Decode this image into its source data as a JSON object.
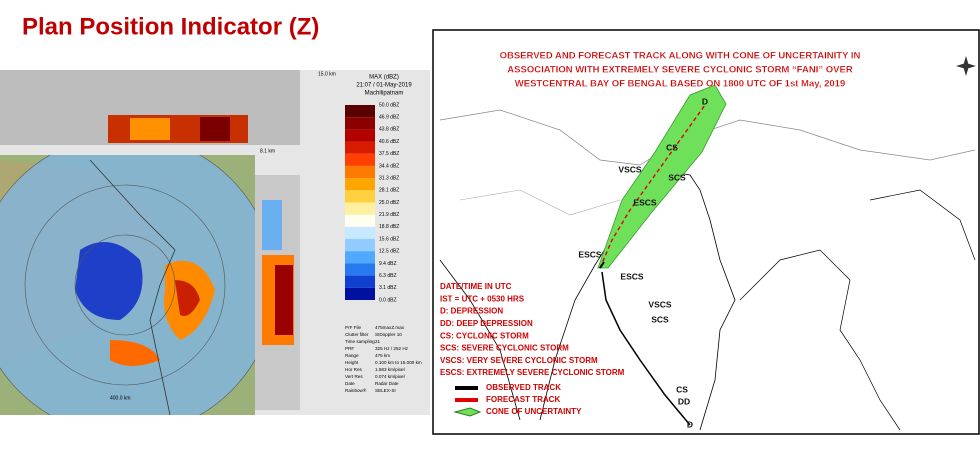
{
  "header": {
    "title": "Plan Position Indicator (Z)"
  },
  "radar": {
    "product": "MAX (dBZ)",
    "time": "21:07 / 01-May-2019",
    "station": "Machilipatnam",
    "top_height": "15.0 km",
    "side_height": "8.1 km",
    "range_label": "400.0 km",
    "scale": [
      "50.0 dBZ",
      "46.9 dBZ",
      "43.8 dBZ",
      "40.6 dBZ",
      "37.5 dBZ",
      "34.4 dBZ",
      "31.3 dBZ",
      "28.1 dBZ",
      "25.0 dBZ",
      "21.9 dBZ",
      "18.8 dBZ",
      "15.6 dBZ",
      "12.5 dBZ",
      "9.4 dBZ",
      "6.3 dBZ",
      "3.1 dBZ",
      "0.0 dBZ"
    ],
    "info": [
      [
        "PrF File",
        "475maxZ.max"
      ],
      [
        "Clutter filter",
        "SIDoppler 10"
      ],
      [
        "Time sampling",
        "21"
      ],
      [
        "PRF",
        "325 Hz / 252 Hz"
      ],
      [
        "Range",
        "475 km"
      ],
      [
        "Height",
        "0.100 km to 15.000 km"
      ],
      [
        "Hor Res",
        "1.583 km/pixel"
      ],
      [
        "Vert Res",
        "0.074 km/pixel"
      ],
      [
        "Date",
        "Radar Date"
      ],
      [
        "Rainbow®",
        "SELEX-SI"
      ]
    ]
  },
  "map": {
    "title": [
      "OBSERVED AND FORECAST TRACK ALONG WITH CONE OF UNCERTAINITY IN",
      "ASSOCIATION WITH EXTREMELY SEVERE CYCLONIC STORM “FANI” OVER",
      "WESTCENTRAL BAY OF BENGAL BASED ON 1800 UTC OF 1st May, 2019"
    ],
    "track_labels": [
      "D",
      "CS",
      "SCS",
      "VSCS",
      "ESCS",
      "ESCS",
      "ESCS",
      "VSCS",
      "SCS",
      "CS",
      "DD",
      "D"
    ],
    "notes": [
      "DATE/TIME IN UTC",
      "IST = UTC + 0530 HRS",
      "D: DEPRESSION",
      "DD: DEEP DEPRESSION",
      "CS: CYCLONIC STORM",
      "SCS: SEVERE CYCLONIC STORM",
      "VSCS: VERY SEVERE CYCLONIC STORM",
      "ESCS: EXTREMELY SEVERE CYCLONIC STORM"
    ],
    "legend": [
      "OBSERVED TRACK",
      "FORECAST TRACK",
      "CONE OF UNCERTAINTY"
    ]
  }
}
